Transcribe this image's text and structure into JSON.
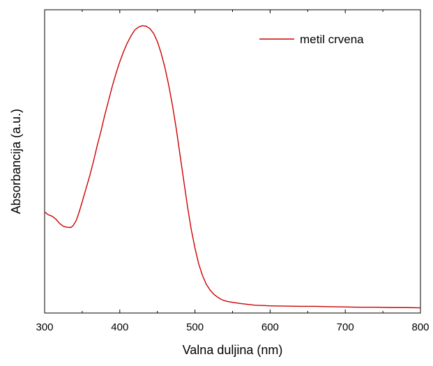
{
  "chart_data": {
    "type": "line",
    "title": "",
    "xlabel": "Valna duljina (nm)",
    "ylabel": "Absorbancija (a.u.)",
    "xlim": [
      300,
      800
    ],
    "ylim": [
      0,
      1.05
    ],
    "x_ticks": [
      "300",
      "400",
      "500",
      "600",
      "700",
      "800"
    ],
    "y_ticks_shown": false,
    "grid": false,
    "legend_position": "top-right",
    "series": [
      {
        "name": "metil crvena",
        "color": "#cc0000",
        "x": [
          300,
          305,
          310,
          315,
          320,
          325,
          330,
          335,
          338,
          342,
          346,
          350,
          355,
          360,
          365,
          370,
          375,
          380,
          385,
          390,
          395,
          400,
          405,
          410,
          415,
          420,
          425,
          430,
          435,
          440,
          445,
          450,
          455,
          460,
          465,
          470,
          475,
          480,
          485,
          490,
          495,
          500,
          505,
          510,
          515,
          520,
          525,
          530,
          535,
          540,
          545,
          550,
          560,
          570,
          580,
          590,
          600,
          620,
          640,
          660,
          680,
          700,
          720,
          740,
          760,
          780,
          800
        ],
        "y": [
          0.35,
          0.34,
          0.335,
          0.325,
          0.31,
          0.3,
          0.297,
          0.296,
          0.303,
          0.32,
          0.35,
          0.385,
          0.43,
          0.475,
          0.525,
          0.58,
          0.63,
          0.685,
          0.735,
          0.785,
          0.83,
          0.87,
          0.905,
          0.935,
          0.96,
          0.98,
          0.99,
          0.995,
          0.993,
          0.985,
          0.968,
          0.94,
          0.9,
          0.85,
          0.79,
          0.72,
          0.64,
          0.55,
          0.46,
          0.37,
          0.29,
          0.225,
          0.17,
          0.13,
          0.1,
          0.08,
          0.065,
          0.055,
          0.047,
          0.042,
          0.039,
          0.037,
          0.033,
          0.03,
          0.027,
          0.026,
          0.025,
          0.024,
          0.023,
          0.023,
          0.022,
          0.021,
          0.02,
          0.02,
          0.019,
          0.019,
          0.018
        ]
      }
    ]
  }
}
